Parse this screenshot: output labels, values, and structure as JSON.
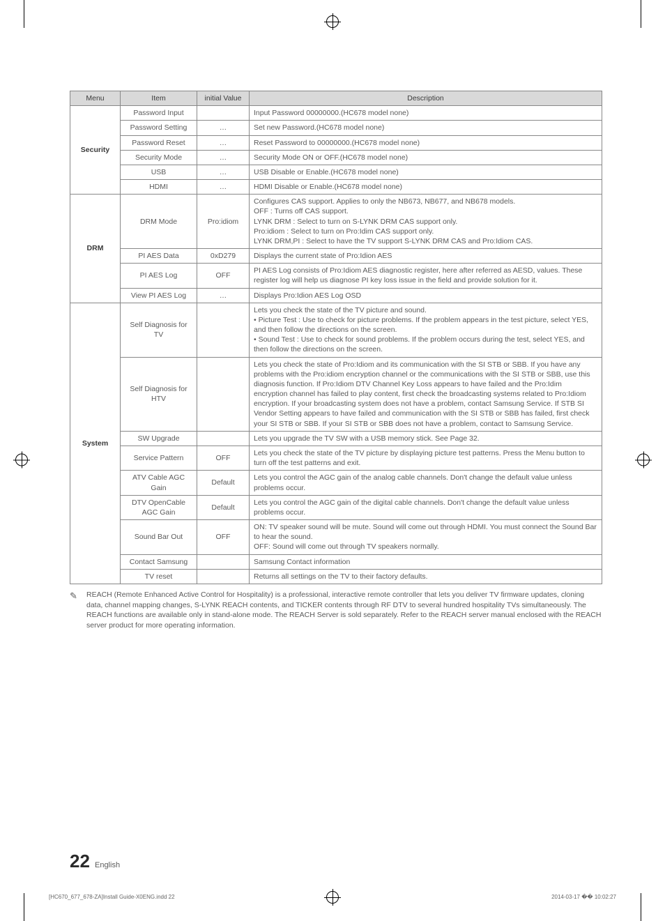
{
  "columns": {
    "menu": "Menu",
    "item": "Item",
    "initial": "initial Value",
    "description": "Description"
  },
  "sections": [
    {
      "menu": "Security",
      "rows": [
        {
          "item": "Password Input",
          "initial": "",
          "desc": "Input Password 00000000.(HC678 model  none)"
        },
        {
          "item": "Password Setting",
          "initial": "…",
          "desc": "Set new  Password.(HC678 model  none)"
        },
        {
          "item": "Password Reset",
          "initial": "…",
          "desc": "Reset Password to 00000000.(HC678 model  none)"
        },
        {
          "item": "Security Mode",
          "initial": "…",
          "desc": "Security Mode ON or OFF.(HC678 model  none)"
        },
        {
          "item": "USB",
          "initial": "…",
          "desc": "USB Disable or Enable.(HC678 model  none)"
        },
        {
          "item": "HDMI",
          "initial": "…",
          "desc": "HDMI Disable or Enable.(HC678 model  none)"
        }
      ]
    },
    {
      "menu": "DRM",
      "rows": [
        {
          "item": "DRM Mode",
          "initial": "Pro:idiom",
          "desc": "Configures CAS support. Applies to only the NB673, NB677, and NB678 models.\nOFF : Turns off CAS support.\nLYNK DRM : Select to turn on S-LYNK DRM CAS support only.\nPro:idiom : Select to turn on Pro:Idim CAS support only.\nLYNK DRM,PI : Select to have the TV support S-LYNK DRM CAS and Pro:Idiom CAS."
        },
        {
          "item": "PI AES Data",
          "initial": "0xD279",
          "desc": "Displays the current state of Pro:Idion AES"
        },
        {
          "item": "PI AES Log",
          "initial": "OFF",
          "desc": "PI AES Log consists of Pro:Idiom AES diagnostic register, here after referred as AESD, values. These register log will help us diagnose PI key loss issue in the field and provide solution for it."
        },
        {
          "item": "View PI AES Log",
          "initial": "…",
          "desc": "Displays Pro:Idion AES Log OSD"
        }
      ]
    },
    {
      "menu": "System",
      "rows": [
        {
          "item": "Self Diagnosis for TV",
          "initial": "",
          "desc": "Lets you check the state of the TV picture and sound.\n• Picture Test : Use to check for picture problems. If the problem appears in the test picture, select YES, and then follow the directions on the screen.\n• Sound Test : Use to check for sound problems. If the problem occurs during the test, select YES, and then follow the directions on the screen."
        },
        {
          "item": "Self Diagnosis for HTV",
          "initial": "",
          "desc": "Lets you check the state of Pro:Idiom and its communication with the SI STB or SBB. If you have any problems with the Pro:idiom encryption channel or the communications with the SI STB or SBB, use this diagnosis function. If Pro:Idiom DTV Channel Key Loss appears to have failed and the Pro:Idim encryption channel has failed to play content, first check the broadcasting systems related to Pro:Idiom encryption. If your broadcasting system does not have a problem, contact Samsung Service. If STB SI Vendor Setting appears to have failed and communication with the SI STB or SBB has failed, first check your SI STB or SBB. If your SI STB or SBB does not have a problem, contact to Samsung Service."
        },
        {
          "item": "SW Upgrade",
          "initial": "",
          "desc": "Lets you upgrade the TV SW with a USB memory stick. See Page 32."
        },
        {
          "item": "Service Pattern",
          "initial": "OFF",
          "desc": "Lets you check the state of the TV picture by displaying picture test patterns. Press the Menu button to turn off the test patterns and exit."
        },
        {
          "item": "ATV Cable AGC Gain",
          "initial": "Default",
          "desc": "Lets you control the AGC gain of the analog cable channels. Don't change the default value unless problems occur."
        },
        {
          "item": "DTV  OpenCable AGC Gain",
          "initial": "Default",
          "desc": "Lets you control the AGC gain of the digital cable channels. Don't change the default value unless problems occur."
        },
        {
          "item": "Sound Bar Out",
          "initial": "OFF",
          "desc": "ON: TV speaker sound will be mute. Sound will come out through HDMI. You must connect the Sound Bar to hear the sound.\nOFF: Sound will come out through TV speakers normally."
        },
        {
          "item": "Contact Samsung",
          "initial": "",
          "desc": "Samsung Contact information"
        },
        {
          "item": "TV reset",
          "initial": "",
          "desc": "Returns all settings on the TV to their factory defaults."
        }
      ]
    }
  ],
  "note": "REACH (Remote Enhanced Active Control for Hospitality) is a professional, interactive remote controller that lets you deliver TV firmware updates, cloning data, channel mapping changes, S-LYNK REACH contents, and TICKER contents through RF DTV to several hundred hospitality TVs simultaneously. The REACH functions are available only in stand-alone mode. The REACH Server is sold separately. Refer to the REACH server manual enclosed with the REACH server product for more operating information.",
  "note_icon": "✎",
  "page_number": "22",
  "page_lang": "English",
  "print_left": "[HC670_677_678-ZA]Install Guide-X0ENG.indd   22",
  "print_right": "2014-03-17   �� 10:02:27"
}
